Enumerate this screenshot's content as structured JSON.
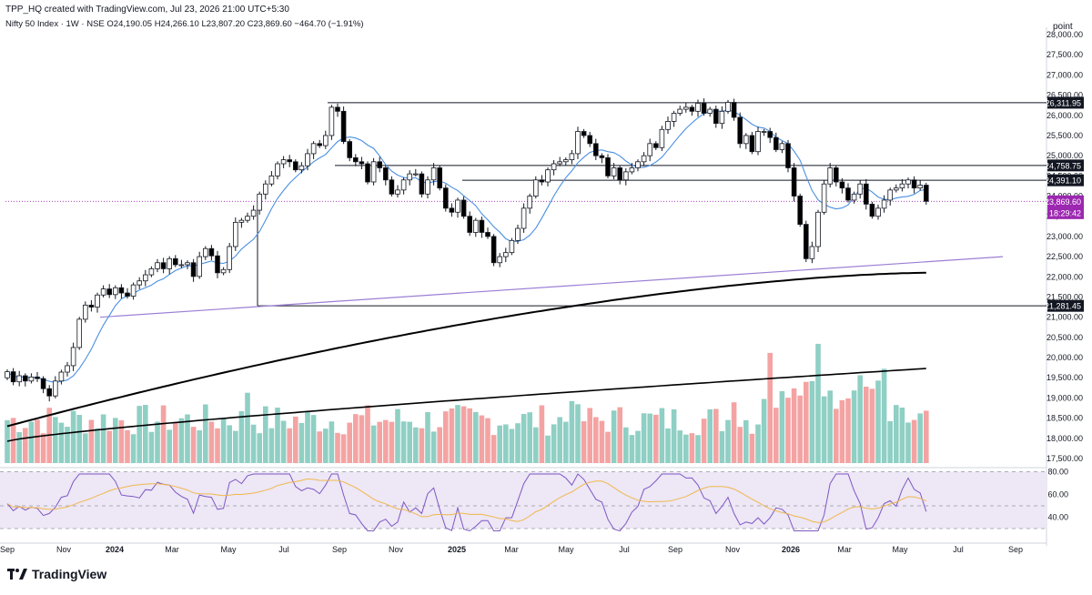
{
  "header": {
    "created_line": "TPP_HQ created with TradingView.com, Jul 23, 2026 21:00 UTC+5:30",
    "symbol": "Nifty 50 Index · 1W · NSE",
    "open": "O24,190.05",
    "high": "H24,266.10",
    "low": "L23,807.20",
    "close": "C23,869.60",
    "change": "−464.70 (−1.91%)"
  },
  "axis": {
    "unit_label": "point",
    "price_ticks": [
      "28,000.00",
      "27,500.00",
      "27,000.00",
      "26,500.00",
      "26,000.00",
      "25,500.00",
      "25,000.00",
      "24,500.00",
      "24,000.00",
      "23,500.00",
      "23,000.00",
      "22,500.00",
      "22,000.00",
      "21,500.00",
      "21,000.00",
      "20,500.00",
      "20,000.00",
      "19,500.00",
      "19,000.00",
      "18,500.00",
      "18,000.00",
      "17,500.00"
    ],
    "rsi_ticks": [
      "80.00",
      "60.00",
      "40.00"
    ],
    "time_ticks": [
      "Sep",
      "Nov",
      "2024",
      "Mar",
      "May",
      "Jul",
      "Sep",
      "Nov",
      "2025",
      "Mar",
      "May",
      "Jul",
      "Sep",
      "Nov",
      "2026",
      "Mar",
      "May",
      "Jul",
      "Sep"
    ]
  },
  "price_labels": {
    "resistance_top": "26,311.95",
    "level_upper": "24,758.75",
    "level_mid": "24,391.10",
    "last_price": "23,869.60",
    "countdown": "18:29:42",
    "support": "21,281.45"
  },
  "colors": {
    "up": "#ffffff",
    "down": "#000000",
    "vol_up": "#8fcfc4",
    "vol_down": "#f4a3a3",
    "ma_fast": "#4a90e2",
    "ma_slow": "#000000",
    "trend_line": "#9b7fd4",
    "rsi_line": "#7e57c2",
    "rsi_ma": "#f0b84c",
    "rsi_band": "#ede7f6",
    "last_price_bg": "#9c27b0"
  },
  "chart_data": {
    "type": "candlestick",
    "symbol": "Nifty 50 Index",
    "interval": "1W",
    "exchange": "NSE",
    "y_range": [
      17500,
      28100
    ],
    "last_ohlc": {
      "open": 24190.05,
      "high": 24266.1,
      "low": 23807.2,
      "close": 23869.6,
      "change": -464.7,
      "change_pct": -1.91
    },
    "closes": [
      19650,
      19400,
      19550,
      19420,
      19520,
      19480,
      19230,
      19050,
      19420,
      19640,
      19800,
      20250,
      20950,
      21300,
      21250,
      21550,
      21700,
      21560,
      21730,
      21600,
      21520,
      21800,
      21900,
      22050,
      22200,
      22350,
      22200,
      22450,
      22300,
      22300,
      22350,
      22010,
      22500,
      22700,
      22520,
      22100,
      22180,
      22750,
      23350,
      23400,
      23500,
      23650,
      24050,
      24300,
      24500,
      24800,
      24900,
      24850,
      24650,
      24750,
      25050,
      25300,
      25250,
      25500,
      26200,
      26100,
      25350,
      24950,
      24850,
      24800,
      24350,
      24850,
      24700,
      24400,
      24050,
      24150,
      24400,
      24550,
      24550,
      24050,
      24400,
      24700,
      24200,
      23700,
      23600,
      23900,
      23500,
      23100,
      23400,
      23100,
      23000,
      22350,
      22500,
      22600,
      22900,
      23200,
      23700,
      24000,
      24400,
      24350,
      24650,
      24800,
      24850,
      24900,
      25050,
      25600,
      25500,
      25300,
      25000,
      24950,
      24500,
      24700,
      24400,
      24600,
      24700,
      24850,
      25000,
      25300,
      25200,
      25650,
      25850,
      26050,
      26150,
      26200,
      26100,
      26300,
      26050,
      26150,
      25800,
      26100,
      26320,
      25950,
      25300,
      25500,
      25100,
      25600,
      25600,
      25450,
      25150,
      25300,
      24700,
      24000,
      23300,
      22450,
      22750,
      23600,
      24300,
      24700,
      24350,
      24200,
      23900,
      24050,
      24300,
      23800,
      23500,
      23700,
      23900,
      24150,
      24200,
      24300,
      24400,
      24200,
      24270,
      23870
    ],
    "sma_fast_period": 20,
    "sma_slow_period": 200,
    "horizontal_levels": [
      26311.95,
      24758.75,
      24391.1,
      21281.45
    ],
    "rsi_levels": [
      80,
      50,
      30
    ]
  }
}
